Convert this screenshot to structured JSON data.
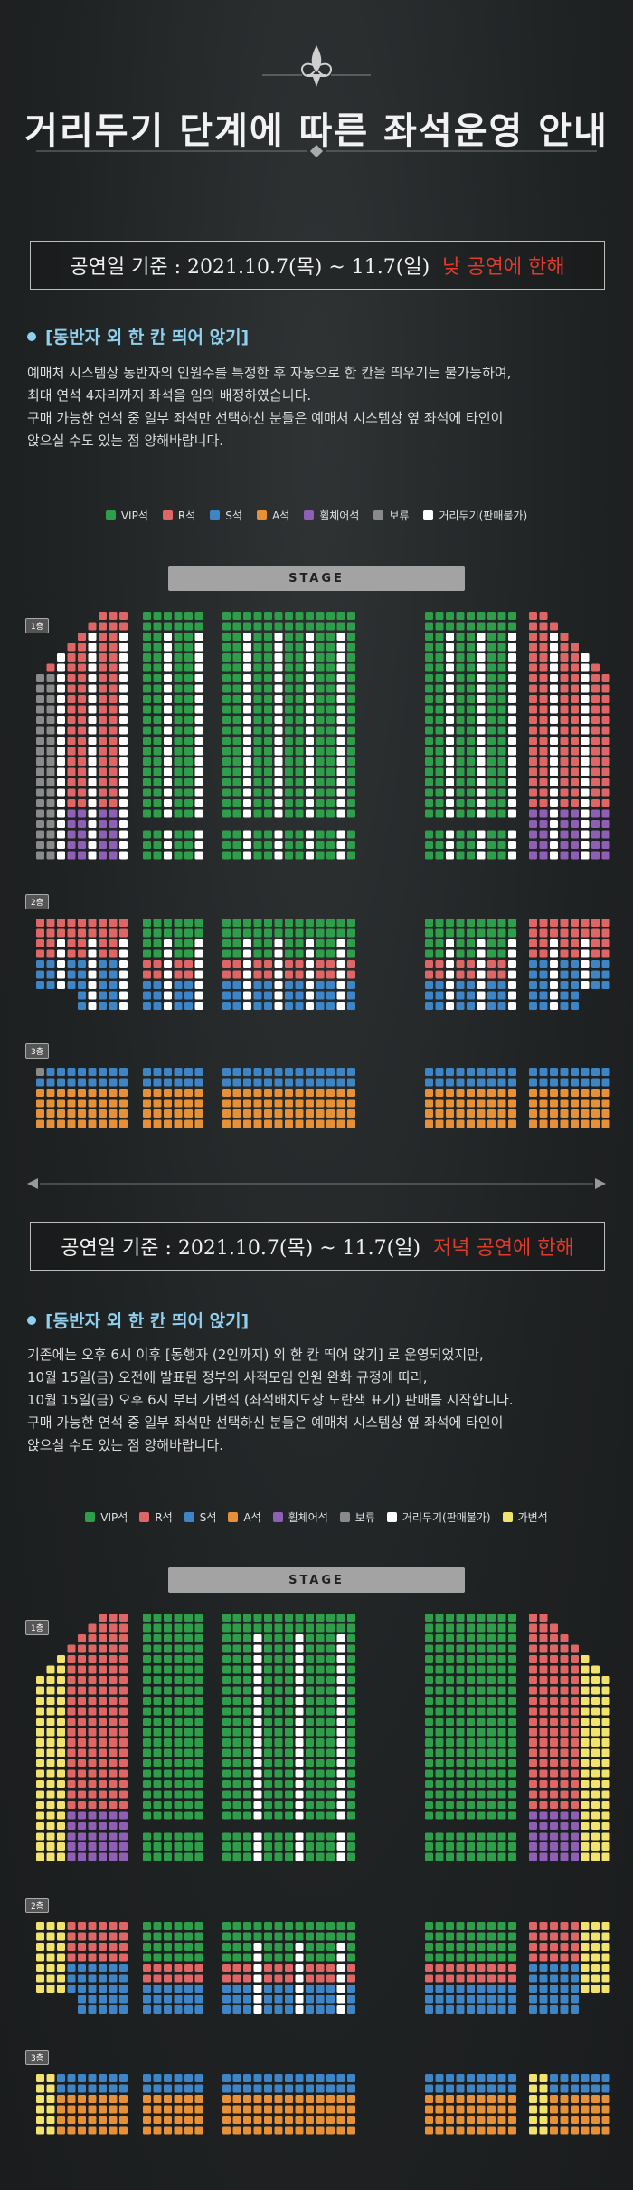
{
  "title": "거리두기 단계에 따른 좌석운영 안내",
  "sections": [
    {
      "date_label": "공연일 기준 : 2021.10.7(목) ~ 11.7(일)",
      "date_note": "낮 공연에 한해",
      "heading": "[동반자 외 한 칸 띄어 앉기]",
      "lines": [
        "예매처 시스템상 동반자의 인원수를 특정한 후 자동으로 한 칸을 띄우기는 불가능하여,",
        "최대 연석 4자리까지 좌석을 임의 배정하였습니다.",
        "구매 가능한 연석 중 일부 좌석만 선택하신 분들은 예매처 시스템상 옆 좌석에 타인이",
        "앉으실 수도 있는 점 양해바랍니다."
      ],
      "legend": [
        "VIP석",
        "R석",
        "S석",
        "A석",
        "휠체어석",
        "보류",
        "거리두기(판매불가)"
      ],
      "stage": "STAGE",
      "floors": [
        "1층",
        "2층",
        "3층"
      ]
    },
    {
      "date_label": "공연일 기준 : 2021.10.7(목) ~ 11.7(일)",
      "date_note": "저녁 공연에 한해",
      "heading": "[동반자 외 한 칸 띄어 앉기]",
      "lines": [
        "기존에는 오후 6시 이후 [동행자 (2인까지) 외 한 칸 띄어 앉기] 로 운영되었지만,",
        "10월 15일(금) 오전에 발표된 정부의 사적모임 인원 완화 규정에 따라,",
        "10월 15일(금) 오후 6시 부터 가변석 (좌석배치도상 노란색 표기) 판매를 시작합니다.",
        "구매 가능한 연석 중 일부 좌석만 선택하신 분들은 예매처 시스템상 옆 좌석에 타인이",
        "앉으실 수도 있는 점 양해바랍니다."
      ],
      "legend": [
        "VIP석",
        "R석",
        "S석",
        "A석",
        "휠체어석",
        "보류",
        "거리두기(판매불가)",
        "가변석"
      ],
      "stage": "STAGE",
      "floors": [
        "1층",
        "2층",
        "3층"
      ]
    }
  ],
  "colors": {
    "vip": "#2e9e4b",
    "r": "#e06666",
    "s": "#3d85c6",
    "a": "#e69138",
    "wheel": "#8e5fb5",
    "hold": "#8a8a8a",
    "block": "#ffffff",
    "variable": "#f1e36b"
  }
}
